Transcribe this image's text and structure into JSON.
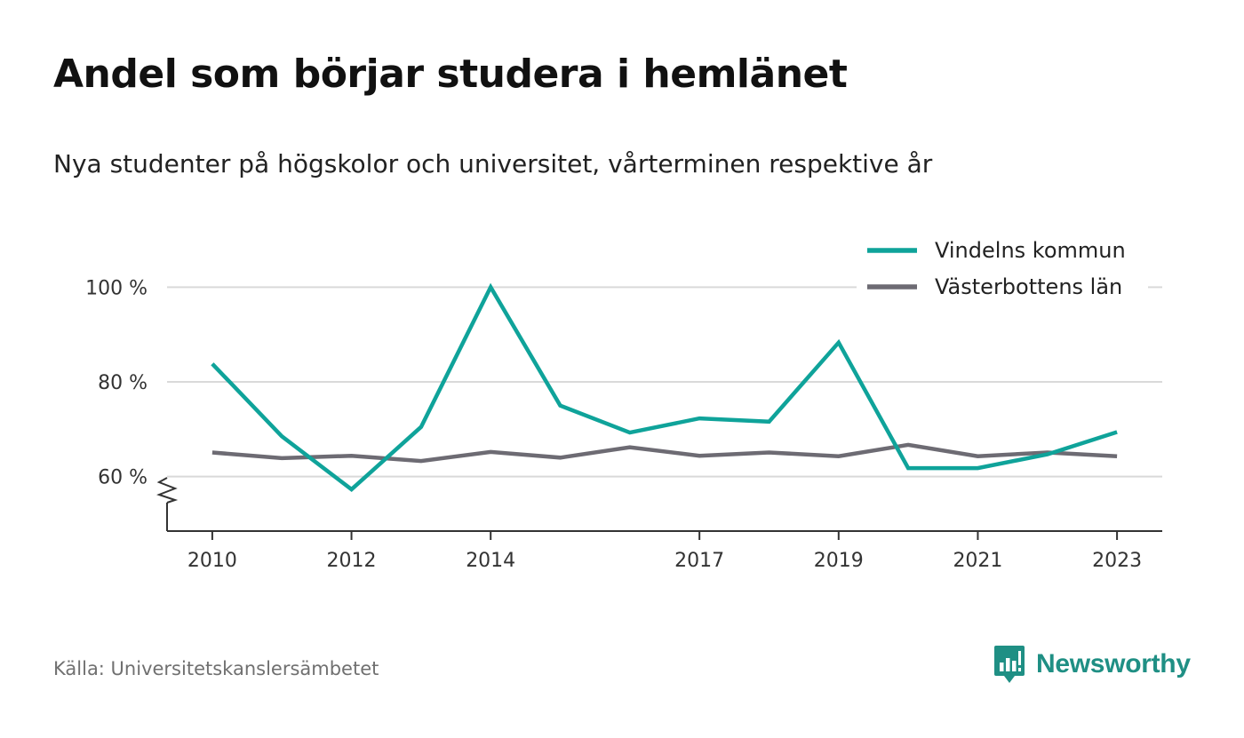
{
  "title": "Andel som börjar studera i hemlänet",
  "subtitle": "Nya studenter på högskolor och universitet, vårterminen respektive år",
  "source": "Källa: Universitetskanslersämbetet",
  "brand": {
    "name": "Newsworthy",
    "icon": "newsworthy-logo-icon",
    "color": "#1f8f84"
  },
  "colors": {
    "gridline": "#d9d9d9",
    "axis": "#333333"
  },
  "chart_data": {
    "type": "line",
    "title": "Andel som börjar studera i hemlänet",
    "subtitle": "Nya studenter på högskolor och universitet, vårterminen respektive år",
    "xlabel": "",
    "ylabel": "",
    "x": [
      2010,
      2011,
      2012,
      2013,
      2014,
      2015,
      2016,
      2017,
      2018,
      2019,
      2020,
      2021,
      2022,
      2023
    ],
    "x_tick_labels": [
      "2010",
      "2012",
      "2014",
      "2017",
      "2019",
      "2021",
      "2023"
    ],
    "x_range": [
      2009.35,
      2023.65
    ],
    "ylim": [
      48.5,
      110
    ],
    "y_ticks": [
      60,
      80,
      100
    ],
    "y_tick_labels": [
      "60 %",
      "80 %",
      "100 %"
    ],
    "y_axis_break": true,
    "grid": true,
    "legend_position": "top-right",
    "series": [
      {
        "name": "Vindelns kommun",
        "color": "#0fa39a",
        "values": [
          83.8,
          68.5,
          57.3,
          70.5,
          100.0,
          75.0,
          69.3,
          72.3,
          71.6,
          88.3,
          61.8,
          61.8,
          64.7,
          69.4
        ]
      },
      {
        "name": "Västerbottens län",
        "color": "#6d6b73",
        "values": [
          65.1,
          63.9,
          64.4,
          63.3,
          65.2,
          64.0,
          66.2,
          64.4,
          65.1,
          64.3,
          66.7,
          64.3,
          65.1,
          64.3
        ]
      }
    ]
  }
}
